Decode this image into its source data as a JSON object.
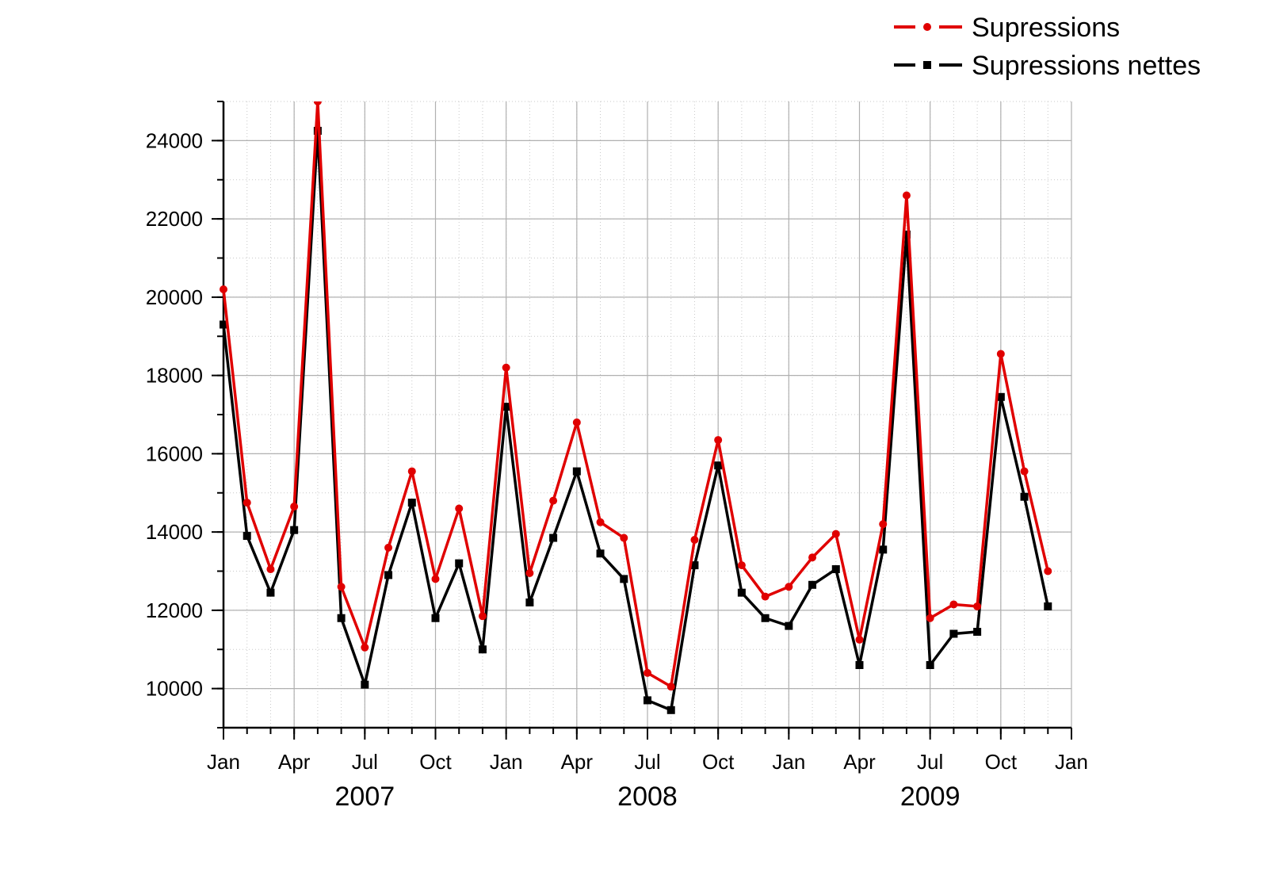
{
  "chart_data": {
    "type": "line",
    "title": "",
    "xlabel": "",
    "ylabel": "",
    "x": [
      "2007-01",
      "2007-02",
      "2007-03",
      "2007-04",
      "2007-05",
      "2007-06",
      "2007-07",
      "2007-08",
      "2007-09",
      "2007-10",
      "2007-11",
      "2007-12",
      "2008-01",
      "2008-02",
      "2008-03",
      "2008-04",
      "2008-05",
      "2008-06",
      "2008-07",
      "2008-08",
      "2008-09",
      "2008-10",
      "2008-11",
      "2008-12",
      "2009-01",
      "2009-02",
      "2009-03",
      "2009-04",
      "2009-05",
      "2009-06",
      "2009-07",
      "2009-08",
      "2009-09",
      "2009-10",
      "2009-11",
      "2009-12"
    ],
    "x_ticks": [
      {
        "label": "Jan",
        "date": "2007-01"
      },
      {
        "label": "Apr",
        "date": "2007-04"
      },
      {
        "label": "Jul",
        "date": "2007-07"
      },
      {
        "label": "Oct",
        "date": "2007-10"
      },
      {
        "label": "Jan",
        "date": "2008-01"
      },
      {
        "label": "Apr",
        "date": "2008-04"
      },
      {
        "label": "Jul",
        "date": "2008-07"
      },
      {
        "label": "Oct",
        "date": "2008-10"
      },
      {
        "label": "Jan",
        "date": "2009-01"
      },
      {
        "label": "Apr",
        "date": "2009-04"
      },
      {
        "label": "Jul",
        "date": "2009-07"
      },
      {
        "label": "Oct",
        "date": "2009-10"
      },
      {
        "label": "Jan",
        "date": "2010-01"
      }
    ],
    "x_range": [
      "2007-01",
      "2010-01"
    ],
    "year_labels": [
      {
        "label": "2007",
        "date": "2007-07"
      },
      {
        "label": "2008",
        "date": "2008-07"
      },
      {
        "label": "2009",
        "date": "2009-07"
      }
    ],
    "y_ticks": [
      10000,
      12000,
      14000,
      16000,
      18000,
      20000,
      22000,
      24000
    ],
    "ylim": [
      9000,
      25000
    ],
    "grid": true,
    "legend_position": "top-right",
    "series": [
      {
        "name": "Supressions",
        "color": "#e00000",
        "marker": "circle",
        "values": [
          20200,
          14750,
          13050,
          14650,
          25000,
          12600,
          11050,
          13600,
          15550,
          12800,
          14600,
          11850,
          18200,
          12950,
          14800,
          16800,
          14250,
          13850,
          10400,
          10050,
          13800,
          16350,
          13150,
          12350,
          12600,
          13350,
          13950,
          11250,
          14200,
          22600,
          11800,
          12150,
          12100,
          18550,
          15550,
          13000
        ]
      },
      {
        "name": "Supressions nettes",
        "color": "#000000",
        "marker": "square",
        "values": [
          19300,
          13900,
          12450,
          14050,
          24250,
          11800,
          10100,
          12900,
          14750,
          11800,
          13200,
          11000,
          17200,
          12200,
          13850,
          15550,
          13450,
          12800,
          9700,
          9450,
          13150,
          15700,
          12450,
          11800,
          11600,
          12650,
          13050,
          10600,
          13550,
          21600,
          10600,
          11400,
          11450,
          17450,
          14900,
          12100
        ]
      }
    ]
  }
}
